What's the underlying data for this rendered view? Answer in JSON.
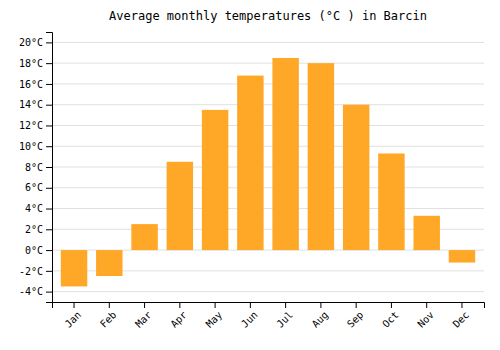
{
  "chart_data": {
    "type": "bar",
    "title": "Average monthly temperatures (°C ) in Barcin",
    "categories": [
      "Jan",
      "Feb",
      "Mar",
      "Apr",
      "May",
      "Jun",
      "Jul",
      "Aug",
      "Sep",
      "Oct",
      "Nov",
      "Dec"
    ],
    "values": [
      -3.5,
      -2.5,
      2.5,
      8.5,
      13.5,
      16.8,
      18.5,
      18.0,
      14.0,
      9.3,
      3.3,
      -1.2
    ],
    "color": "#FFA726",
    "ylim": [
      -5,
      21
    ],
    "yticks": [
      {
        "value": -4,
        "label": "-4°C"
      },
      {
        "value": -2,
        "label": "-2°C"
      },
      {
        "value": 0,
        "label": "0°C"
      },
      {
        "value": 2,
        "label": "2°C"
      },
      {
        "value": 4,
        "label": "4°C"
      },
      {
        "value": 6,
        "label": "6°C"
      },
      {
        "value": 8,
        "label": "8°C"
      },
      {
        "value": 10,
        "label": "10°C"
      },
      {
        "value": 12,
        "label": "12°C"
      },
      {
        "value": 14,
        "label": "14°C"
      },
      {
        "value": 16,
        "label": "16°C"
      },
      {
        "value": 18,
        "label": "18°C"
      },
      {
        "value": 20,
        "label": "20°C"
      }
    ],
    "grid": true
  }
}
